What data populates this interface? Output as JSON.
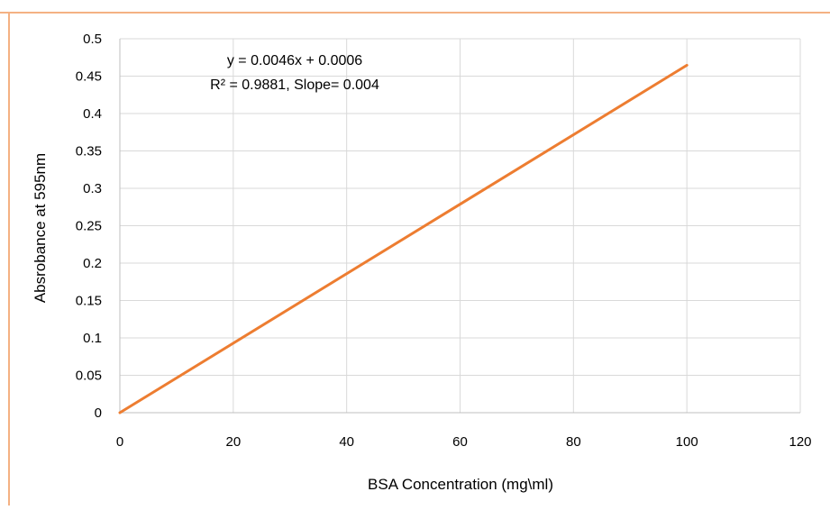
{
  "chart_data": {
    "type": "line",
    "title": "",
    "xlabel": "BSA Concentration (mg\\ml)",
    "ylabel": "Absrobance at  595nm",
    "xlim": [
      0,
      120
    ],
    "ylim": [
      0,
      0.5
    ],
    "xticks": [
      "0",
      "20",
      "40",
      "60",
      "80",
      "100",
      "120"
    ],
    "yticks": [
      "0",
      "0.05",
      "0.1",
      "0.15",
      "0.2",
      "0.25",
      "0.3",
      "0.35",
      "0.4",
      "0.45",
      "0.5"
    ],
    "grid": true,
    "legend": "none",
    "series": [
      {
        "x": [
          0,
          100
        ],
        "y": [
          0,
          0.4646
        ],
        "color": "#ed7d31"
      }
    ],
    "annotations": [
      "y = 0.0046x + 0.0006",
      "R² = 0.9881, Slope= 0.004"
    ]
  },
  "colors": {
    "frame_border": "#f4b183",
    "gridline": "#d9d9d9",
    "axis_line": "#bfbfbf"
  }
}
